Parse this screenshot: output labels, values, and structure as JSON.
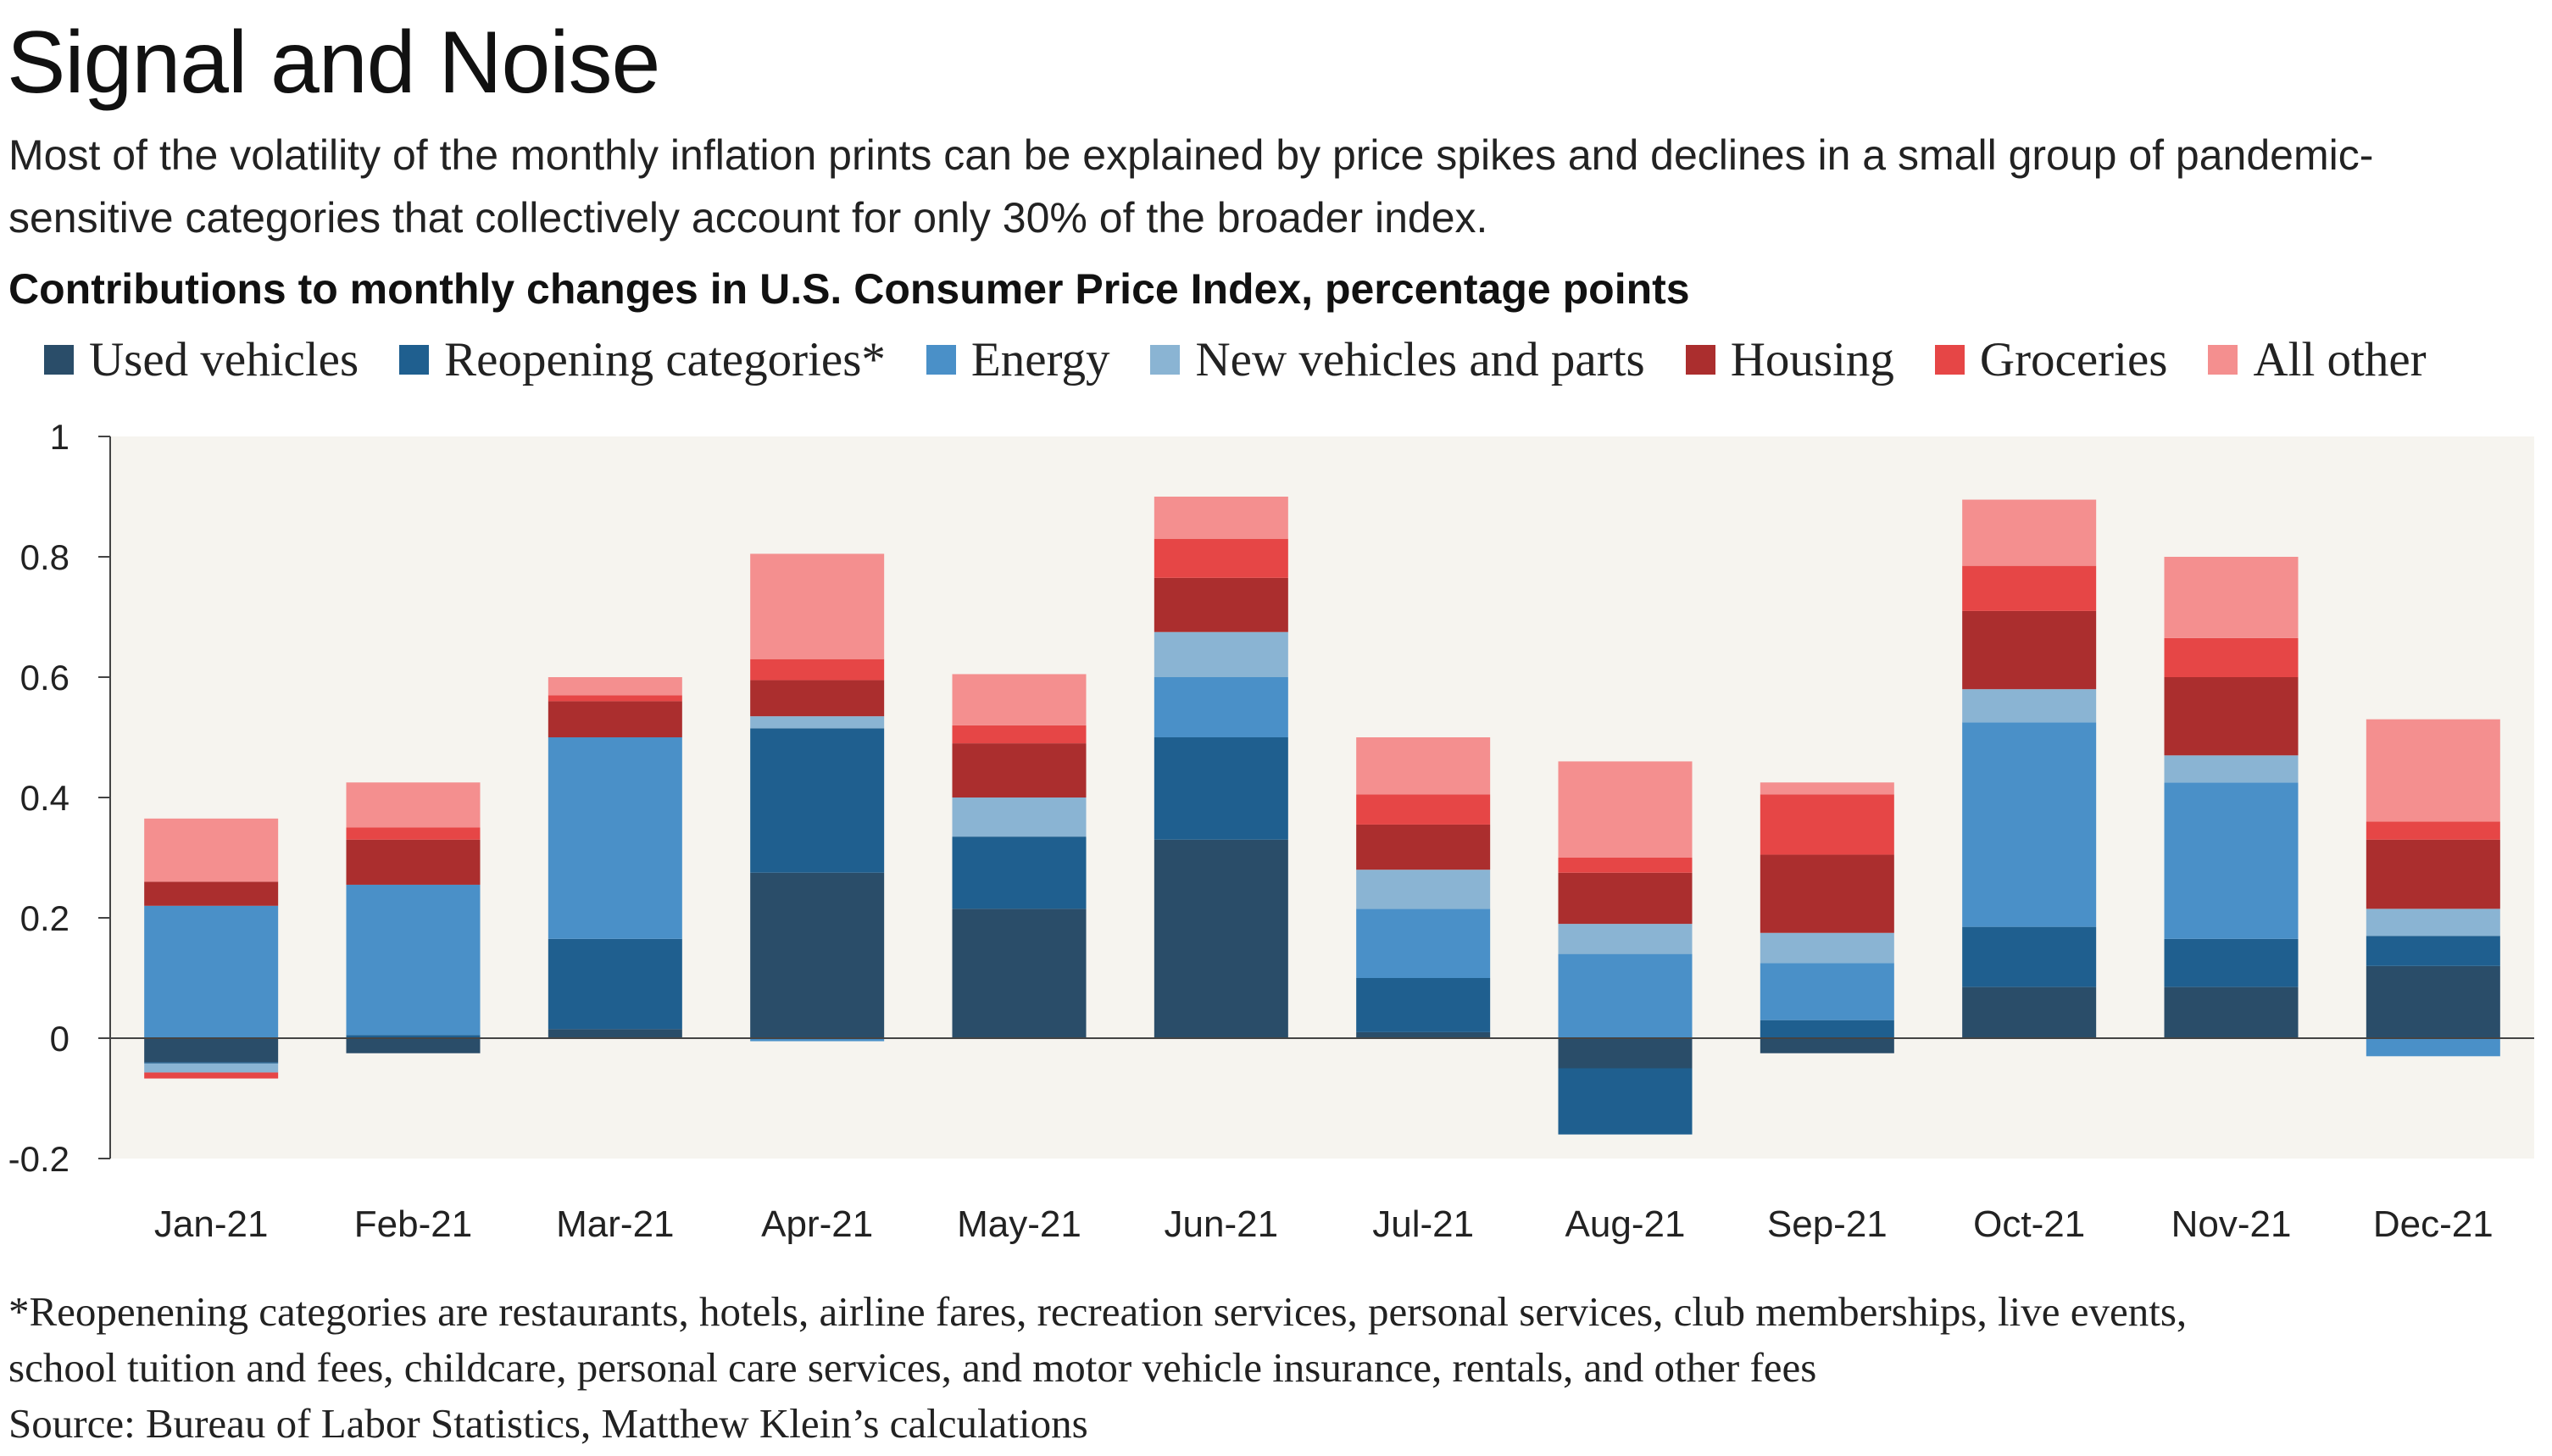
{
  "header": {
    "title": "Signal and Noise",
    "subtitle": "Most of the volatility of the monthly inflation prints can be explained by price spikes and declines in a small group of pandemic-sensitive categories that collectively account for only 30% of the broader index."
  },
  "chart_data": {
    "type": "bar",
    "stacked": true,
    "title": "Contributions to monthly changes in U.S. Consumer Price Index, percentage points",
    "xlabel": "",
    "ylabel": "",
    "ylim": [
      -0.2,
      1
    ],
    "yticks": [
      "1",
      "0.8",
      "0.6",
      "0.4",
      "0.2",
      "0",
      "-0.2"
    ],
    "ytick_values": [
      1,
      0.8,
      0.6,
      0.4,
      0.2,
      0,
      -0.2
    ],
    "grid": false,
    "legend_position": "top",
    "categories": [
      "Jan-21",
      "Feb-21",
      "Mar-21",
      "Apr-21",
      "May-21",
      "Jun-21",
      "Jul-21",
      "Aug-21",
      "Sep-21",
      "Oct-21",
      "Nov-21",
      "Dec-21"
    ],
    "series": [
      {
        "name": "Used vehicles",
        "color": "#2a4d69",
        "values": [
          -0.04,
          -0.025,
          0.015,
          0.275,
          0.215,
          0.33,
          0.01,
          -0.05,
          -0.025,
          0.085,
          0.085,
          0.12
        ]
      },
      {
        "name": "Reopening categories*",
        "color": "#1f5f8f",
        "values": [
          -0.002,
          0.005,
          0.15,
          0.24,
          0.12,
          0.17,
          0.09,
          -0.11,
          0.03,
          0.1,
          0.08,
          0.05
        ]
      },
      {
        "name": "Energy",
        "color": "#4a90c8",
        "values": [
          0.22,
          0.25,
          0.335,
          -0.005,
          0.0,
          0.1,
          0.115,
          0.14,
          0.095,
          0.34,
          0.26,
          -0.03
        ]
      },
      {
        "name": "New vehicles and parts",
        "color": "#8ab4d3",
        "values": [
          -0.015,
          0.0,
          0.0,
          0.02,
          0.065,
          0.075,
          0.065,
          0.05,
          0.05,
          0.055,
          0.045,
          0.045
        ]
      },
      {
        "name": "Housing",
        "color": "#ab2e2e",
        "values": [
          0.04,
          0.075,
          0.06,
          0.06,
          0.09,
          0.09,
          0.075,
          0.085,
          0.13,
          0.13,
          0.13,
          0.115
        ]
      },
      {
        "name": "Groceries",
        "color": "#e64646",
        "values": [
          -0.01,
          0.02,
          0.01,
          0.035,
          0.03,
          0.065,
          0.05,
          0.025,
          0.1,
          0.075,
          0.065,
          0.03
        ]
      },
      {
        "name": "All other",
        "color": "#f48f8f",
        "values": [
          0.105,
          0.075,
          0.03,
          0.175,
          0.085,
          0.07,
          0.095,
          0.16,
          0.02,
          0.11,
          0.135,
          0.17
        ]
      }
    ]
  },
  "footnote": {
    "line1": "*Reopenening categories are restaurants, hotels, airline fares, recreation services, personal services,  club memberships, live events,",
    "line2": "school tuition and fees, childcare, personal care services, and motor vehicle insurance, rentals, and other fees",
    "source": "Source: Bureau of Labor Statistics, Matthew Klein’s calculations"
  }
}
